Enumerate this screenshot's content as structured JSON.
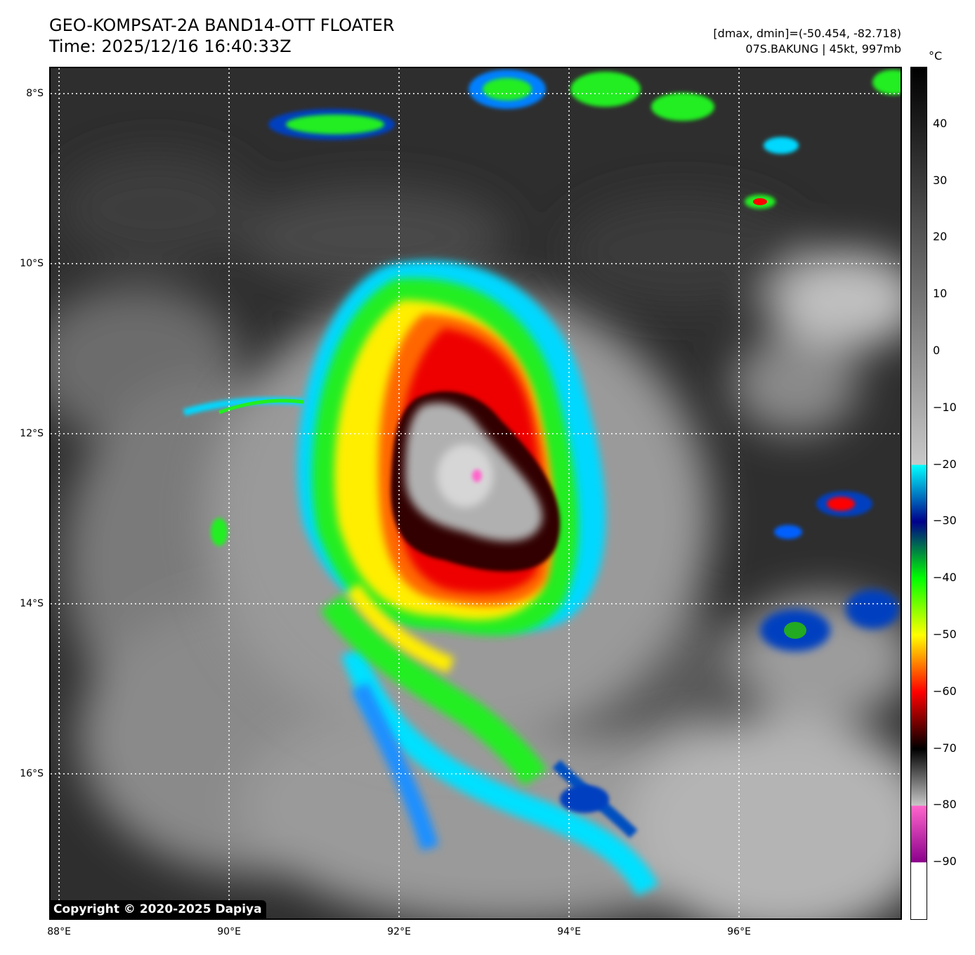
{
  "header": {
    "title_line1": "GEO-KOMPSAT-2A BAND14-OTT FLOATER",
    "title_line2": "Time: 2025/12/16 16:40:33Z",
    "range_text": "[dmax, dmin]=(-50.454, -82.718)",
    "storm_text": "07S.BAKUNG | 45kt, 997mb"
  },
  "map": {
    "lon_min": 87.9,
    "lon_max": 97.9,
    "lat_top": -7.7,
    "lat_bottom": -17.7,
    "lat_labels": [
      "8°S",
      "10°S",
      "12°S",
      "14°S",
      "16°S"
    ],
    "lat_values": [
      -8,
      -10,
      -12,
      -14,
      -16
    ],
    "lon_labels": [
      "88°E",
      "90°E",
      "92°E",
      "94°E",
      "96°E"
    ],
    "lon_values": [
      88,
      90,
      92,
      94,
      96
    ],
    "storm_center": {
      "lon": 92.8,
      "lat": -12.5
    },
    "copyright": "Copyright © 2020-2025 Dapiya"
  },
  "colorbar": {
    "unit": "°C",
    "tmax": 50,
    "tmin": -100,
    "tick_labels": [
      "40",
      "30",
      "20",
      "10",
      "0",
      "−10",
      "−20",
      "−30",
      "−40",
      "−50",
      "−60",
      "−70",
      "−80",
      "−90"
    ],
    "tick_values": [
      40,
      30,
      20,
      10,
      0,
      -10,
      -20,
      -30,
      -40,
      -50,
      -60,
      -70,
      -80,
      -90
    ],
    "stops": [
      {
        "t": 50,
        "color": "#000000"
      },
      {
        "t": -20,
        "color": "#c8c8c8"
      },
      {
        "t": -20.01,
        "color": "#00ffff"
      },
      {
        "t": -30,
        "color": "#00008b"
      },
      {
        "t": -40,
        "color": "#00ff00"
      },
      {
        "t": -50,
        "color": "#ffff00"
      },
      {
        "t": -60,
        "color": "#ff0000"
      },
      {
        "t": -70,
        "color": "#000000"
      },
      {
        "t": -80,
        "color": "#c8c8c8"
      },
      {
        "t": -80.01,
        "color": "#ff66cc"
      },
      {
        "t": -90,
        "color": "#8b008b"
      },
      {
        "t": -90.01,
        "color": "#ffffff"
      },
      {
        "t": -100,
        "color": "#ffffff"
      }
    ]
  }
}
